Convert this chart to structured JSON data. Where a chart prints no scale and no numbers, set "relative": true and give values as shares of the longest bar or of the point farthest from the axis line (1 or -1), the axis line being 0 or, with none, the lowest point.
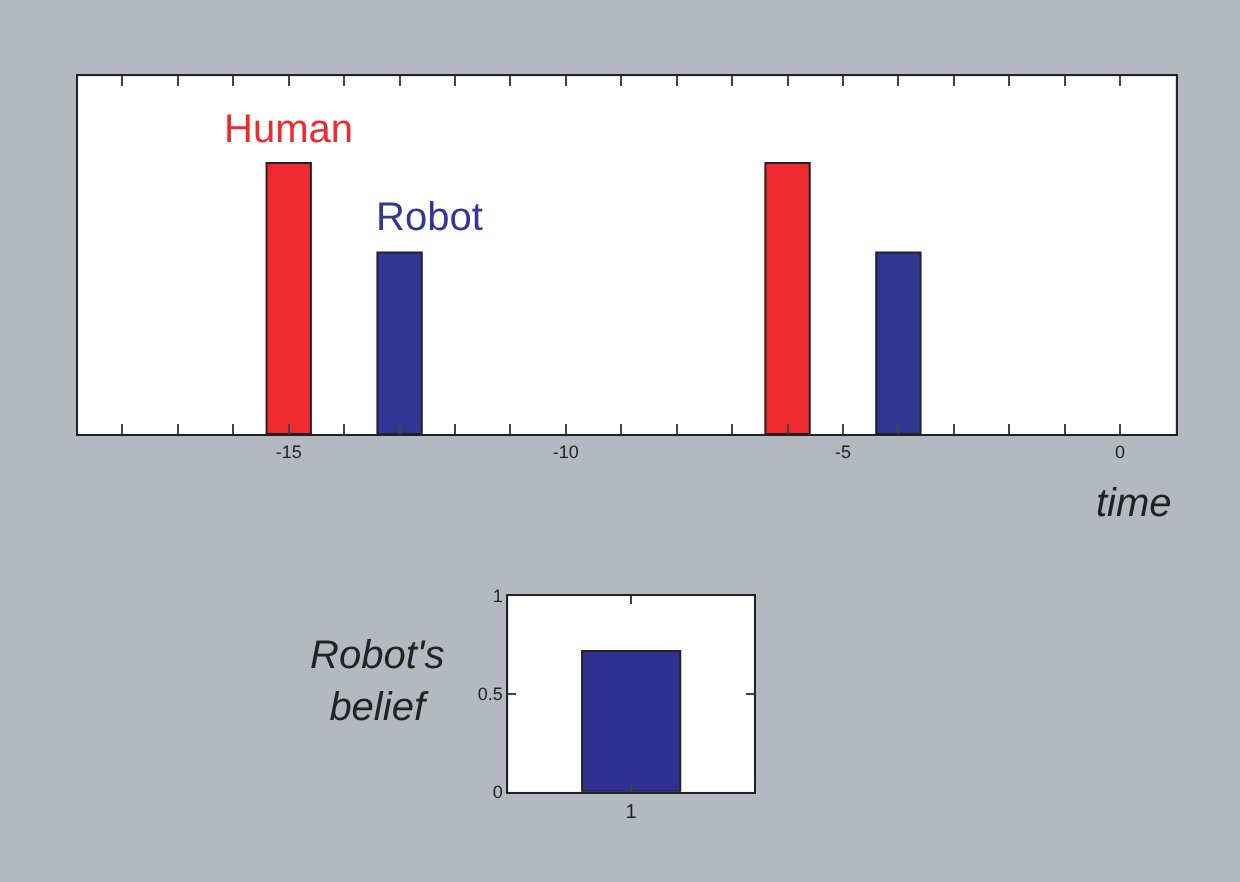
{
  "chart_data": [
    {
      "type": "bar",
      "relative": true,
      "xlabel": "time",
      "x": [
        -15,
        -13,
        -6,
        -4
      ],
      "xlim": [
        -18.8,
        1
      ],
      "xticks": [
        {
          "value": -18,
          "label": null
        },
        {
          "value": -17,
          "label": null
        },
        {
          "value": -16,
          "label": null
        },
        -15,
        {
          "value": -14,
          "label": null
        },
        {
          "value": -13,
          "label": null
        },
        {
          "value": -12,
          "label": null
        },
        {
          "value": -11,
          "label": null
        },
        -10,
        {
          "value": -9,
          "label": null
        },
        {
          "value": -8,
          "label": null
        },
        {
          "value": -7,
          "label": null
        },
        {
          "value": -6,
          "label": null
        },
        -5,
        {
          "value": -4,
          "label": null
        },
        {
          "value": -3,
          "label": null
        },
        {
          "value": -2,
          "label": null
        },
        {
          "value": -1,
          "label": null
        },
        0
      ],
      "legend": false,
      "grid": false,
      "tick_labels": "x",
      "series": [
        {
          "name": "Human",
          "color": "#ee2a2e",
          "values": [
            1,
            null,
            1,
            null
          ]
        },
        {
          "name": "Robot",
          "color": "#323694",
          "values": [
            null,
            0.67,
            null,
            0.67
          ]
        }
      ]
    },
    {
      "type": "bar",
      "ylabel": "Robot's belief",
      "categories": [
        "1"
      ],
      "values": [
        0.72
      ],
      "color": "#2e3192",
      "ylim": [
        0,
        1
      ],
      "yticks": [
        0,
        0.5,
        1
      ],
      "legend": false,
      "grid": false
    }
  ]
}
